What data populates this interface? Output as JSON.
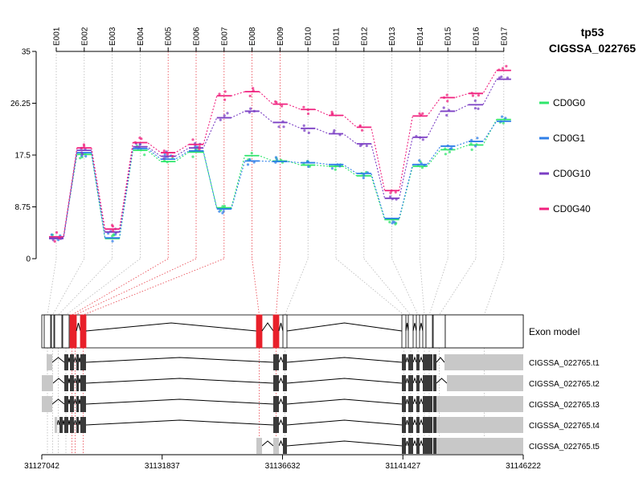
{
  "chart_data": {
    "type": "line",
    "title": "tp53",
    "subtitle": "CIGSSA_022765",
    "y_ticks": [
      "0",
      "8.75",
      "17.5",
      "26.25",
      "35"
    ],
    "y_tick_values": [
      0,
      8.75,
      17.5,
      26.25,
      35
    ],
    "ylim": [
      0,
      35
    ],
    "categories": [
      "E001",
      "E002",
      "E003",
      "E004",
      "E005",
      "E006",
      "E007",
      "E008",
      "E009",
      "E010",
      "E011",
      "E012",
      "E013",
      "E014",
      "E015",
      "E016",
      "E017"
    ],
    "series": [
      {
        "name": "CD0G0",
        "color": "#2EE66B",
        "values": [
          3.6,
          17.6,
          3.4,
          18.3,
          16.4,
          18.0,
          8.6,
          17.4,
          16.5,
          15.8,
          15.6,
          14.0,
          6.6,
          15.6,
          18.4,
          19.2,
          23.5
        ]
      },
      {
        "name": "CD0G1",
        "color": "#2F7FE8",
        "values": [
          3.5,
          17.9,
          3.5,
          18.6,
          16.8,
          18.2,
          8.4,
          16.5,
          16.4,
          16.2,
          15.9,
          14.4,
          6.8,
          15.9,
          19.0,
          19.8,
          23.2
        ]
      },
      {
        "name": "CD0G10",
        "color": "#7B3FC4",
        "values": [
          3.4,
          18.3,
          4.5,
          18.9,
          17.3,
          18.7,
          23.8,
          24.9,
          23.0,
          22.0,
          21.1,
          19.4,
          10.2,
          20.5,
          24.9,
          26.0,
          30.3
        ]
      },
      {
        "name": "CD0G40",
        "color": "#F0207E",
        "values": [
          3.7,
          18.7,
          5.0,
          19.6,
          17.9,
          19.3,
          27.5,
          28.2,
          26.1,
          25.2,
          24.2,
          22.2,
          11.5,
          24.1,
          27.2,
          27.9,
          31.8
        ]
      }
    ],
    "genomic_axis": {
      "ticks": [
        "31127042",
        "31131837",
        "31136632",
        "31141427",
        "31146222"
      ],
      "tick_values": [
        31127042,
        31131837,
        31136632,
        31141427,
        31146222
      ],
      "range": [
        31127042,
        31146222
      ]
    },
    "exon_model_label": "Exon model",
    "transcripts": [
      "CIGSSA_022765.t1",
      "CIGSSA_022765.t2",
      "CIGSSA_022765.t3",
      "CIGSSA_022765.t4",
      "CIGSSA_022765.t5"
    ],
    "highlighted_exons": [
      "E005",
      "E006",
      "E007",
      "E008",
      "E009"
    ]
  }
}
